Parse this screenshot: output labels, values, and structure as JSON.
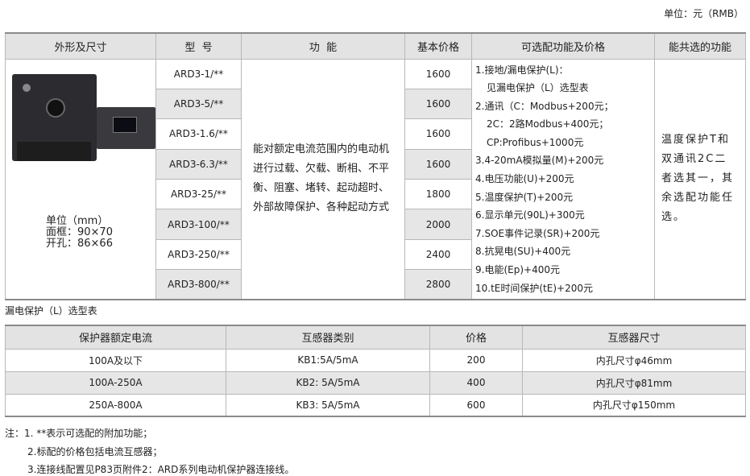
{
  "unit_label": "单位：元（RMB）",
  "main_table": {
    "headers": [
      "外形及尺寸",
      "型  号",
      "功  能",
      "基本价格",
      "可选配功能及价格",
      "能共选的功能"
    ],
    "shape": {
      "unit": "单位（mm）",
      "frame": "面框：90×70",
      "hole": "开孔：86×66"
    },
    "rows": [
      {
        "model": "ARD3-1/**",
        "price": "1600"
      },
      {
        "model": "ARD3-5/**",
        "price": "1600"
      },
      {
        "model": "ARD3-1.6/**",
        "price": "1600"
      },
      {
        "model": "ARD3-6.3/**",
        "price": "1600"
      },
      {
        "model": "ARD3-25/**",
        "price": "1800"
      },
      {
        "model": "ARD3-100/**",
        "price": "2000"
      },
      {
        "model": "ARD3-250/**",
        "price": "2400"
      },
      {
        "model": "ARD3-800/**",
        "price": "2800"
      }
    ],
    "function": "能对额定电流范围内的电动机进行过载、欠载、断相、不平衡、阻塞、堵转、起动超时、外部故障保护、各种起动方式",
    "options": [
      "1.接地/漏电保护(L)：",
      "见漏电保护（L）选型表",
      "2.通讯（C：Modbus+200元；",
      "2C：2路Modbus+400元；",
      "CP:Profibus+1000元",
      "3.4-20mA模拟量(M)+200元",
      "4.电压功能(U)+200元",
      "5.温度保护(T)+200元",
      "6.显示单元(90L)+300元",
      "7.SOE事件记录(SR)+200元",
      "8.抗晃电(SU)+400元",
      "9.电能(Ep)+400元",
      "10.tE时间保护(tE)+200元"
    ],
    "shared": "温度保护T和双通讯2C二者选其一，其余选配功能任选。"
  },
  "leak_table": {
    "title": "漏电保护（L）选型表",
    "headers": [
      "保护器额定电流",
      "互感器类别",
      "价格",
      "互感器尺寸"
    ],
    "rows": [
      [
        "100A及以下",
        "KB1:5A/5mA",
        "200",
        "内孔尺寸φ46mm"
      ],
      [
        "100A-250A",
        "KB2: 5A/5mA",
        "400",
        "内孔尺寸φ81mm"
      ],
      [
        "250A-800A",
        "KB3: 5A/5mA",
        "600",
        "内孔尺寸φ150mm"
      ]
    ]
  },
  "notes": [
    "注：1. **表示可选配的附加功能；",
    "2.标配的价格包括电流互感器；",
    "3.连接线配置见P83页附件2：ARD系列电动机保护器连接线。"
  ]
}
